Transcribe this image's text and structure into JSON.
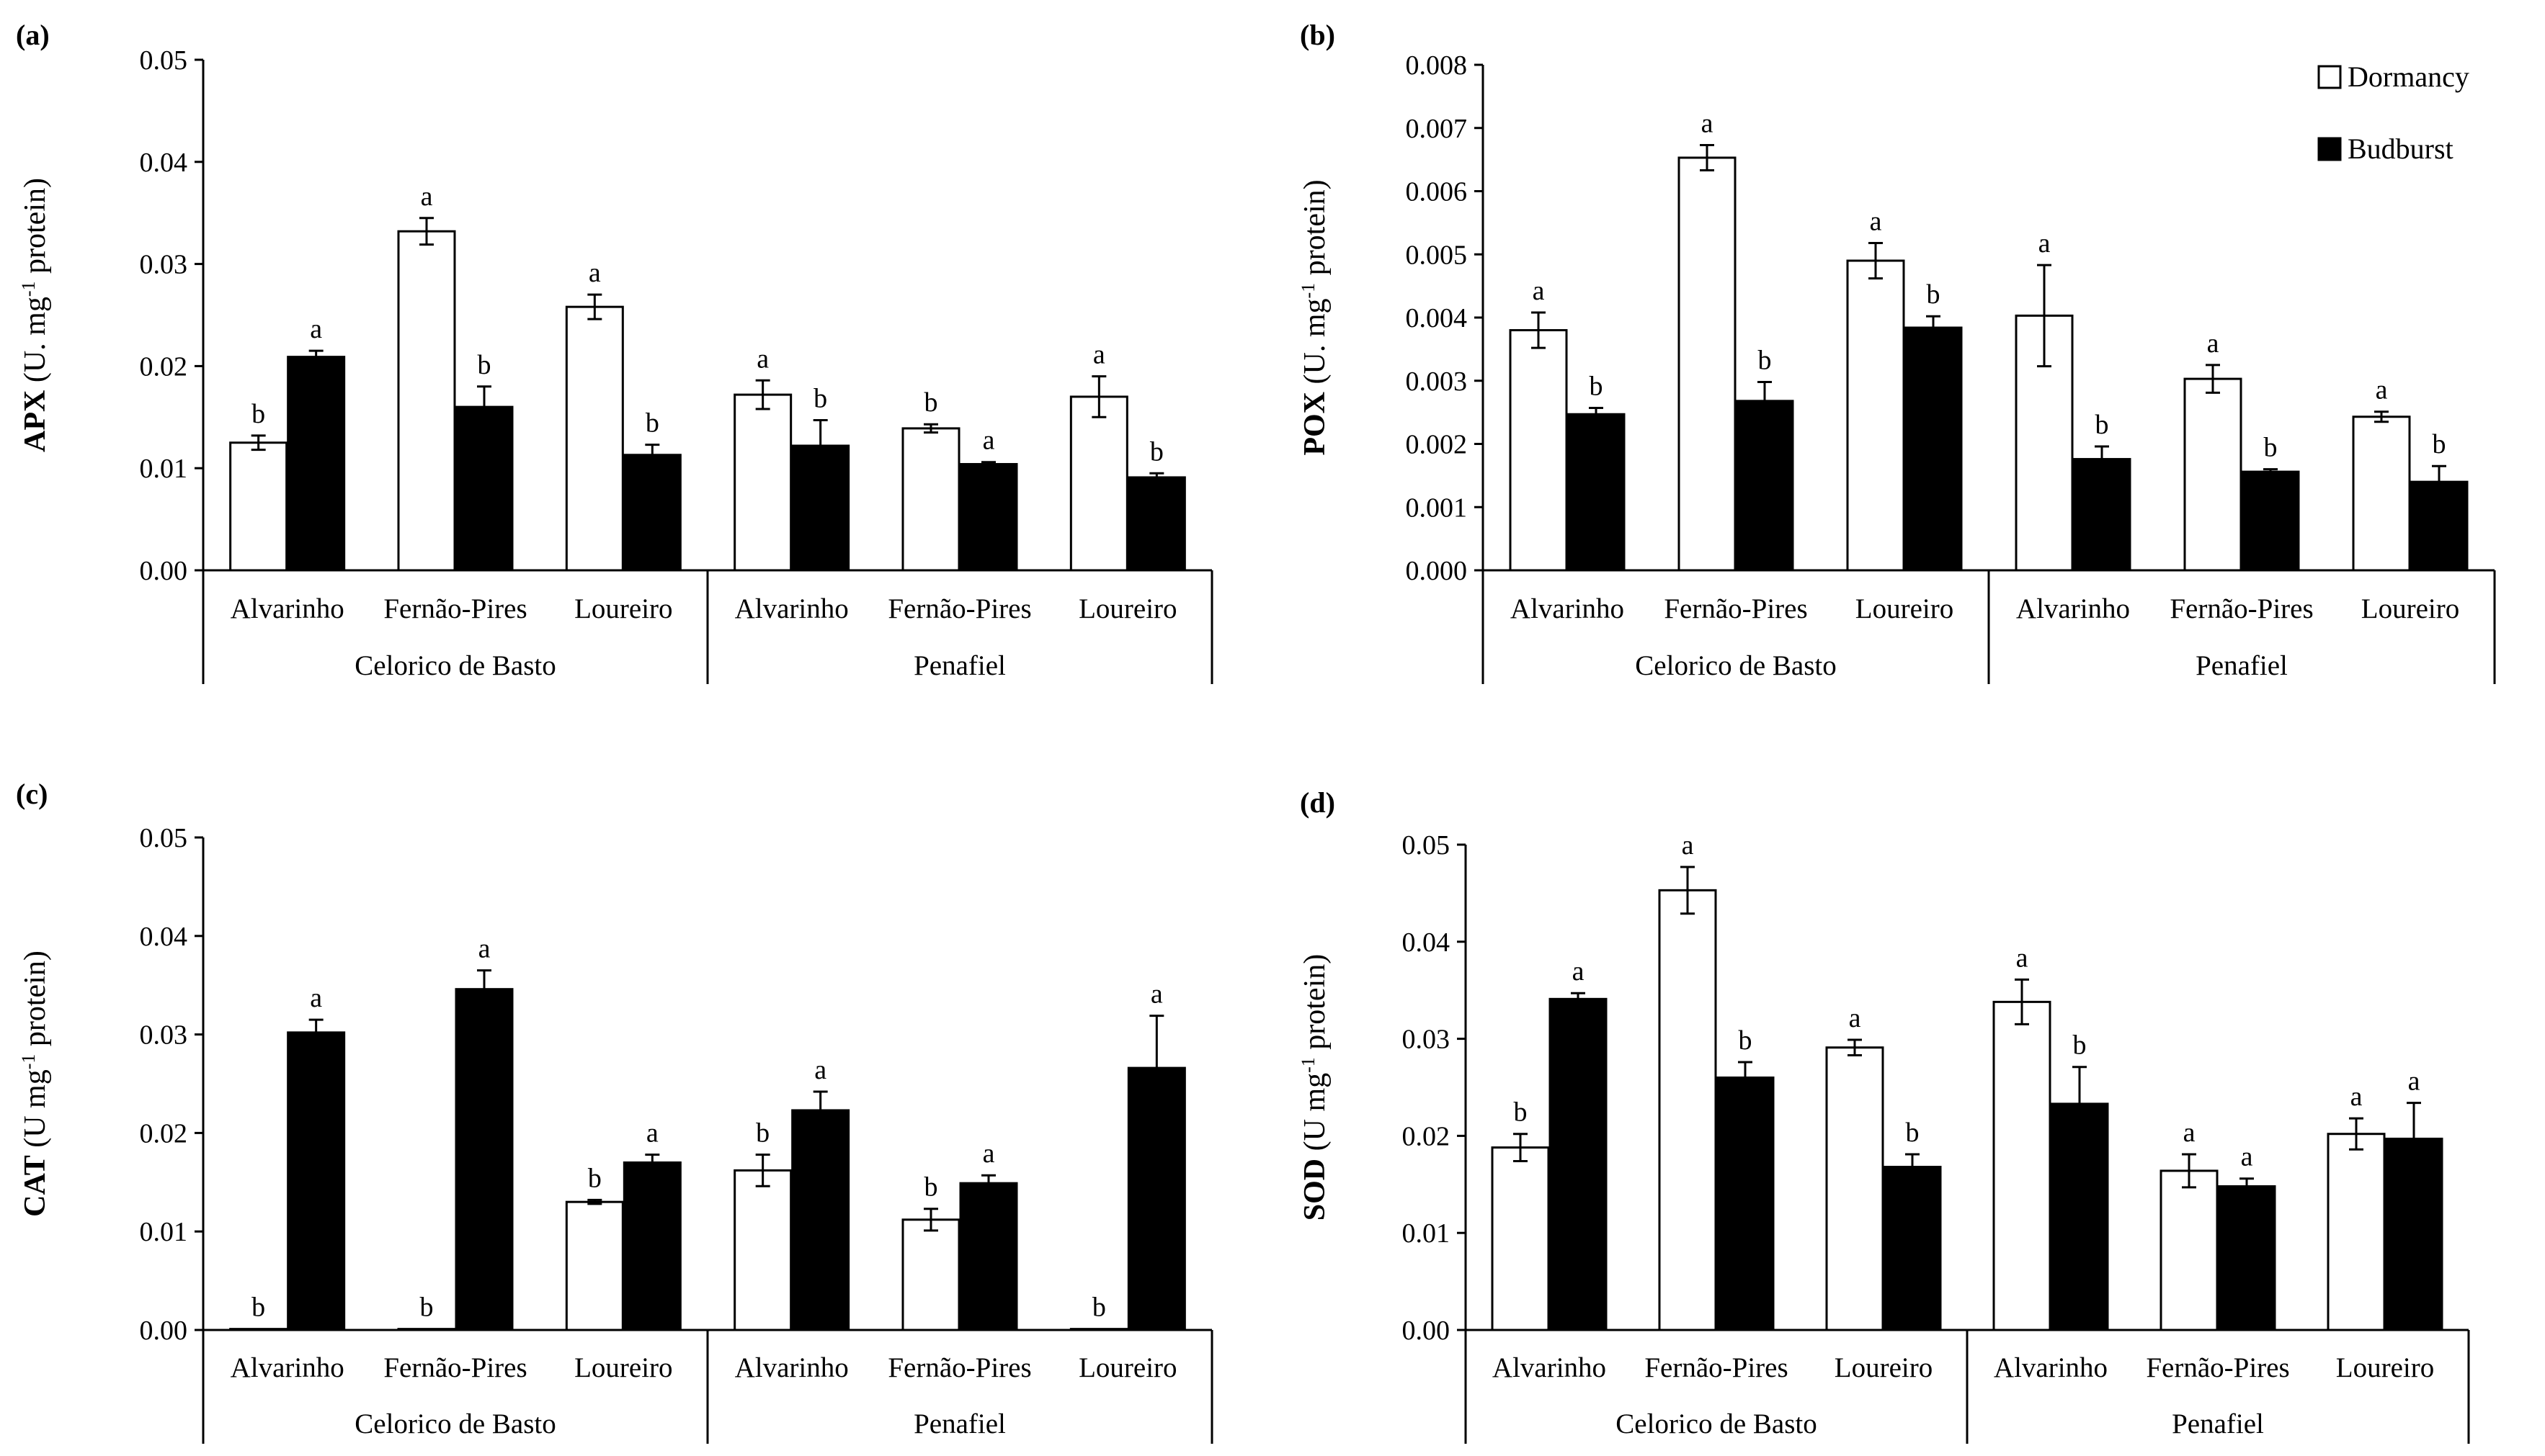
{
  "figure": {
    "legend": [
      {
        "name": "Dormancy",
        "color": "#ffffff"
      },
      {
        "name": "Budburst",
        "color": "#000000"
      }
    ],
    "colors": {
      "dormancy": "#ffffff",
      "budburst": "#000000",
      "stroke": "#000000"
    }
  },
  "chart_data": [
    {
      "type": "bar",
      "panel_label": "(a)",
      "ylabel_bold": "APX",
      "ylabel_rest": " (U. mg",
      "ylabel_sup": "-1",
      "ylabel_end": " protein)",
      "ylim": [
        0,
        0.05
      ],
      "yticks": [
        "0.00",
        "0.01",
        "0.02",
        "0.03",
        "0.04",
        "0.05"
      ],
      "groups": [
        "Celorico de Basto",
        "Penafiel"
      ],
      "categories": [
        "Alvarinho",
        "Fernão-Pires",
        "Loureiro",
        "Alvarinho",
        "Fernão-Pires",
        "Loureiro"
      ],
      "series": [
        {
          "name": "Dormancy",
          "values": [
            0.0125,
            0.0332,
            0.0258,
            0.0172,
            0.0139,
            0.017
          ],
          "errors": [
            0.0007,
            0.0013,
            0.0012,
            0.0014,
            0.0004,
            0.002
          ],
          "letters": [
            "b",
            "a",
            "a",
            "a",
            "b",
            "a"
          ]
        },
        {
          "name": "Budburst",
          "values": [
            0.0209,
            0.016,
            0.0113,
            0.0122,
            0.0104,
            0.0091
          ],
          "errors": [
            0.0006,
            0.002,
            0.001,
            0.0025,
            0.0002,
            0.0004
          ],
          "letters": [
            "a",
            "b",
            "b",
            "b",
            "a",
            "b"
          ]
        }
      ]
    },
    {
      "type": "bar",
      "panel_label": "(b)",
      "ylabel_bold": "POX",
      "ylabel_rest": " (U. mg",
      "ylabel_sup": "-1",
      "ylabel_end": " protein)",
      "ylim": [
        0,
        0.008
      ],
      "yticks": [
        "0.000",
        "0.001",
        "0.002",
        "0.003",
        "0.004",
        "0.005",
        "0.006",
        "0.007",
        "0.008"
      ],
      "groups": [
        "Celorico de Basto",
        "Penafiel"
      ],
      "categories": [
        "Alvarinho",
        "Fernão-Pires",
        "Loureiro",
        "Alvarinho",
        "Fernão-Pires",
        "Loureiro"
      ],
      "series": [
        {
          "name": "Dormancy",
          "values": [
            0.0038,
            0.00653,
            0.0049,
            0.00403,
            0.00303,
            0.00243
          ],
          "errors": [
            0.00028,
            0.0002,
            0.00028,
            0.0008,
            0.00022,
            8e-05
          ],
          "letters": [
            "a",
            "a",
            "a",
            "a",
            "a",
            "a"
          ]
        },
        {
          "name": "Budburst",
          "values": [
            0.00247,
            0.00268,
            0.00384,
            0.00176,
            0.00156,
            0.0014
          ],
          "errors": [
            0.0001,
            0.0003,
            0.00018,
            0.0002,
            4e-05,
            0.00025
          ],
          "letters": [
            "b",
            "b",
            "b",
            "b",
            "b",
            "b"
          ]
        }
      ]
    },
    {
      "type": "bar",
      "panel_label": "(c)",
      "ylabel_bold": "CAT",
      "ylabel_rest": " (U mg",
      "ylabel_sup": "-1",
      "ylabel_end": " protein)",
      "ylim": [
        0,
        0.05
      ],
      "yticks": [
        "0.00",
        "0.01",
        "0.02",
        "0.03",
        "0.04",
        "0.05"
      ],
      "groups": [
        "Celorico de Basto",
        "Penafiel"
      ],
      "categories": [
        "Alvarinho",
        "Fernão-Pires",
        "Loureiro",
        "Alvarinho",
        "Fernão-Pires",
        "Loureiro"
      ],
      "series": [
        {
          "name": "Dormancy",
          "values": [
            0.0001,
            0.0001,
            0.013,
            0.0162,
            0.0112,
            0.0001
          ],
          "errors": [
            0,
            0,
            0.0002,
            0.0016,
            0.0011,
            0
          ],
          "letters": [
            "b",
            "b",
            "b",
            "b",
            "b",
            "b"
          ]
        },
        {
          "name": "Budburst",
          "values": [
            0.0302,
            0.0346,
            0.017,
            0.0223,
            0.0149,
            0.0266
          ],
          "errors": [
            0.0013,
            0.0019,
            0.0008,
            0.0019,
            0.0008,
            0.0053
          ],
          "letters": [
            "a",
            "a",
            "a",
            "a",
            "a",
            "a"
          ]
        }
      ]
    },
    {
      "type": "bar",
      "panel_label": "(d)",
      "ylabel_bold": "SOD",
      "ylabel_rest": " (U mg",
      "ylabel_sup": "-1",
      "ylabel_end": " protein)",
      "ylim": [
        0,
        0.05
      ],
      "yticks": [
        "0.00",
        "0.01",
        "0.02",
        "0.03",
        "0.04",
        "0.05"
      ],
      "groups": [
        "Celorico de Basto",
        "Penafiel"
      ],
      "categories": [
        "Alvarinho",
        "Fernão-Pires",
        "Loureiro",
        "Alvarinho",
        "Fernão-Pires",
        "Loureiro"
      ],
      "series": [
        {
          "name": "Dormancy",
          "values": [
            0.0188,
            0.0453,
            0.0291,
            0.0338,
            0.0164,
            0.0202
          ],
          "errors": [
            0.0014,
            0.0024,
            0.0008,
            0.0023,
            0.0017,
            0.0016
          ],
          "letters": [
            "b",
            "a",
            "a",
            "a",
            "a",
            "a"
          ]
        },
        {
          "name": "Budburst",
          "values": [
            0.0341,
            0.026,
            0.0168,
            0.0233,
            0.0148,
            0.0197
          ],
          "errors": [
            0.0006,
            0.0016,
            0.0013,
            0.0038,
            0.0008,
            0.0037
          ],
          "letters": [
            "a",
            "b",
            "b",
            "b",
            "a",
            "a"
          ]
        }
      ]
    }
  ]
}
